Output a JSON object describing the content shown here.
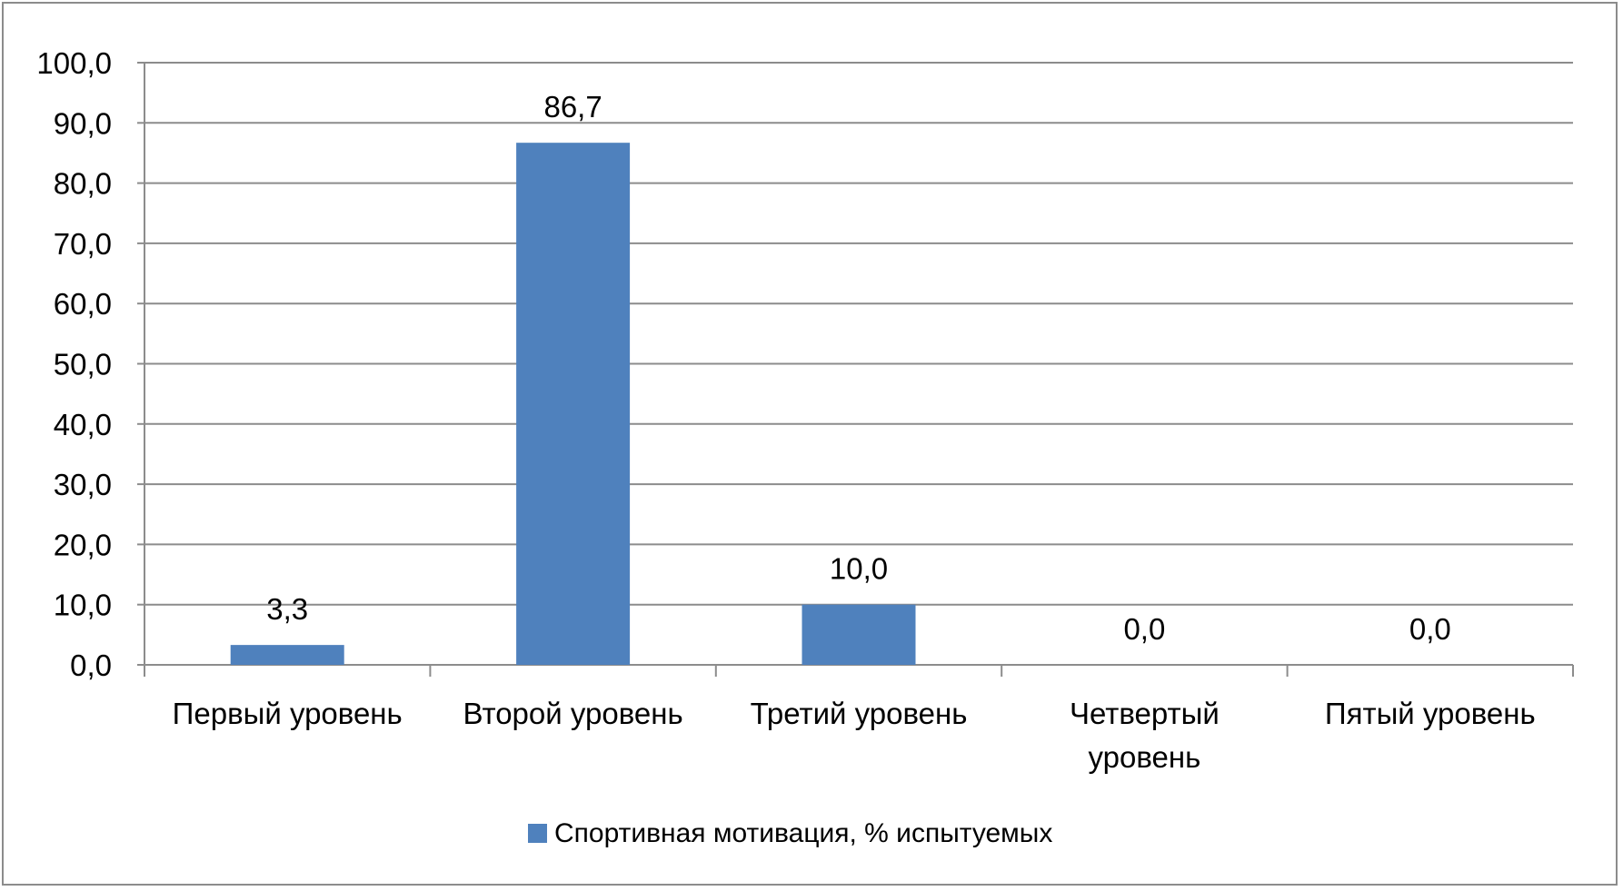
{
  "chart_data": {
    "type": "bar",
    "categories": [
      [
        "Первый уровень"
      ],
      [
        "Второй уровень"
      ],
      [
        "Третий уровень"
      ],
      [
        "Четвертый",
        "уровень"
      ],
      [
        "Пятый уровень"
      ]
    ],
    "series": [
      {
        "name": "Спортивная мотивация, % испытуемых",
        "values": [
          3.3,
          86.7,
          10.0,
          0.0,
          0.0
        ],
        "labels": [
          "3,3",
          "86,7",
          "10,0",
          "0,0",
          "0,0"
        ],
        "color": "#4f81bd"
      }
    ],
    "y_ticks": [
      "0,0",
      "10,0",
      "20,0",
      "30,0",
      "40,0",
      "50,0",
      "60,0",
      "70,0",
      "80,0",
      "90,0",
      "100,0"
    ],
    "ylim": [
      0,
      100
    ],
    "y_step": 10,
    "grid": true,
    "legend_position": "bottom"
  },
  "colors": {
    "bar": "#4f81bd",
    "grid": "#8c8c8c",
    "frame": "#8c8c8c"
  }
}
